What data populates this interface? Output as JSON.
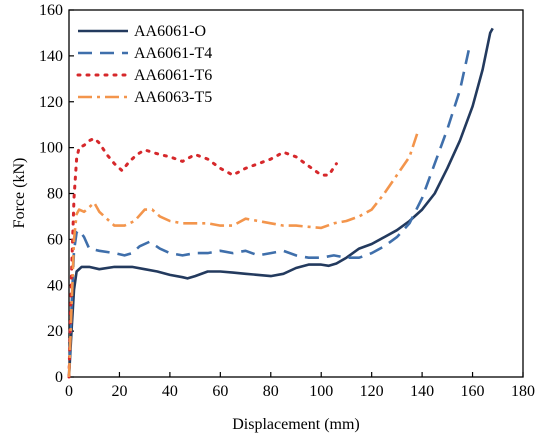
{
  "chart_data": {
    "type": "line",
    "title": "",
    "xlabel": "Displacement (mm)",
    "ylabel": "Force (kN)",
    "xlim": [
      0,
      180
    ],
    "ylim": [
      0,
      160
    ],
    "xticks": [
      0,
      20,
      40,
      60,
      80,
      100,
      120,
      140,
      160,
      180
    ],
    "yticks": [
      0,
      20,
      40,
      60,
      80,
      100,
      120,
      140,
      160
    ],
    "grid": false,
    "legend_position": "top-left",
    "series": [
      {
        "name": "AA6061-O",
        "color": "#233a5e",
        "dash": "solid",
        "x": [
          0,
          1,
          2,
          3,
          5,
          8,
          12,
          18,
          25,
          30,
          35,
          40,
          45,
          47,
          50,
          55,
          60,
          65,
          70,
          75,
          80,
          85,
          90,
          95,
          100,
          103,
          106,
          110,
          115,
          120,
          125,
          130,
          135,
          140,
          145,
          150,
          155,
          160,
          164,
          167,
          168
        ],
        "y": [
          0,
          20,
          38,
          46,
          48,
          48,
          47,
          48,
          48,
          47,
          46,
          44.5,
          43.5,
          43,
          44,
          46,
          46,
          45.5,
          45,
          44.5,
          44,
          45,
          47.5,
          49,
          49,
          48.5,
          49.5,
          52,
          56,
          58,
          61,
          64,
          68,
          73,
          80,
          91,
          103,
          118,
          134,
          150,
          152
        ]
      },
      {
        "name": "AA6061-T4",
        "color": "#3f6fab",
        "dash": "14,8",
        "x": [
          0,
          1,
          2,
          3,
          4,
          6,
          8,
          12,
          18,
          22,
          25,
          28,
          32,
          36,
          40,
          45,
          50,
          55,
          60,
          65,
          70,
          75,
          80,
          85,
          90,
          95,
          100,
          105,
          110,
          115,
          120,
          125,
          130,
          135,
          140,
          145,
          150,
          155,
          159
        ],
        "y": [
          0,
          30,
          55,
          63,
          64,
          61,
          56,
          55,
          54,
          53,
          54,
          57,
          59,
          56,
          54,
          53,
          54,
          54,
          55,
          54,
          55,
          53,
          54,
          55,
          53,
          52,
          52,
          53,
          52,
          52,
          54,
          57,
          61,
          67,
          78,
          93,
          108,
          125,
          145
        ]
      },
      {
        "name": "AA6061-T6",
        "color": "#d6282b",
        "dash": "2,7",
        "x": [
          0,
          1,
          2,
          3,
          4,
          6,
          8,
          10,
          12,
          15,
          18,
          21,
          24,
          27,
          30,
          33,
          36,
          40,
          45,
          50,
          55,
          60,
          65,
          70,
          75,
          80,
          85,
          90,
          95,
          100,
          103,
          106
        ],
        "y": [
          0,
          45,
          78,
          95,
          100,
          101,
          103,
          104,
          102,
          97,
          93,
          90,
          94,
          97,
          99,
          98,
          97,
          96,
          94,
          97,
          95,
          91,
          88,
          91,
          93,
          95,
          98,
          96,
          92,
          88,
          88,
          93
        ]
      },
      {
        "name": "AA6063-T5",
        "color": "#f3954c",
        "dash": "14,5,3,5",
        "x": [
          0,
          1,
          2,
          3,
          4,
          6,
          8,
          10,
          12,
          15,
          18,
          22,
          26,
          30,
          33,
          36,
          40,
          45,
          50,
          55,
          60,
          65,
          70,
          75,
          80,
          85,
          90,
          95,
          100,
          105,
          110,
          115,
          120,
          125,
          130,
          135,
          138
        ],
        "y": [
          0,
          30,
          60,
          71,
          73,
          72,
          74,
          76,
          72,
          69,
          66,
          66,
          68,
          73,
          73,
          70,
          68,
          67,
          67,
          67,
          66,
          66,
          69,
          68,
          67,
          66,
          66,
          65.5,
          65,
          67,
          68,
          70,
          73,
          80,
          88,
          96,
          106
        ]
      }
    ]
  }
}
